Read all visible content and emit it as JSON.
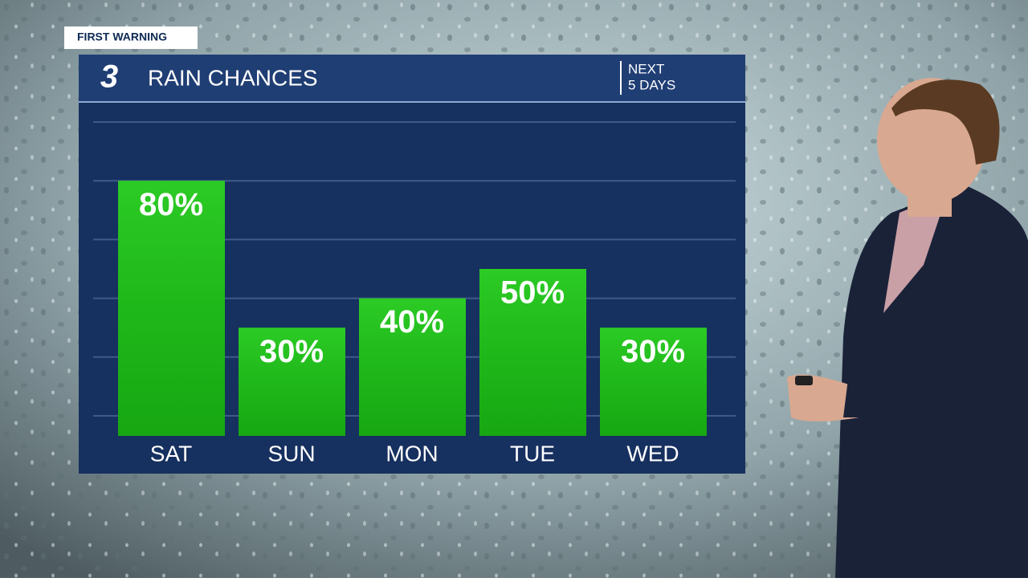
{
  "chart_data": {
    "type": "bar",
    "badge": "FIRST WARNING",
    "logo": "3",
    "title": "RAIN CHANCES",
    "period": [
      "NEXT",
      "5 DAYS"
    ],
    "categories": [
      "SAT",
      "SUN",
      "MON",
      "TUE",
      "WED"
    ],
    "values": [
      80,
      30,
      40,
      50,
      30
    ],
    "value_labels": [
      "80%",
      "30%",
      "40%",
      "50%",
      "30%"
    ],
    "color": "#1fb81a",
    "ylim": [
      0,
      100
    ],
    "yticks": [
      0,
      20,
      40,
      60,
      80,
      100
    ],
    "grid": true
  }
}
